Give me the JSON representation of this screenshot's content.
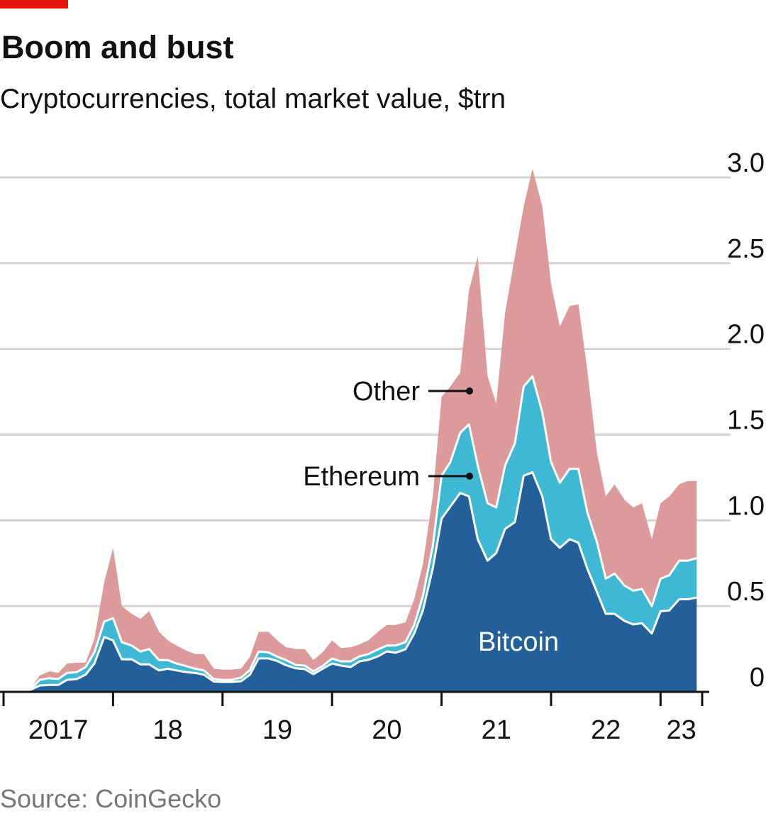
{
  "chart_data": {
    "type": "stacked_area",
    "title": "Boom and bust",
    "subtitle": "Cryptocurrencies, total market value, $trn",
    "source": "Source: CoinGecko",
    "x": [
      2017.0,
      2017.08,
      2017.17,
      2017.25,
      2017.33,
      2017.42,
      2017.5,
      2017.58,
      2017.67,
      2017.75,
      2017.83,
      2017.92,
      2018.0,
      2018.08,
      2018.17,
      2018.25,
      2018.33,
      2018.42,
      2018.5,
      2018.58,
      2018.67,
      2018.75,
      2018.83,
      2018.92,
      2019.0,
      2019.08,
      2019.17,
      2019.25,
      2019.33,
      2019.42,
      2019.5,
      2019.58,
      2019.67,
      2019.75,
      2019.83,
      2019.92,
      2020.0,
      2020.08,
      2020.17,
      2020.25,
      2020.33,
      2020.42,
      2020.5,
      2020.58,
      2020.67,
      2020.75,
      2020.83,
      2020.92,
      2021.0,
      2021.08,
      2021.17,
      2021.25,
      2021.33,
      2021.42,
      2021.5,
      2021.58,
      2021.67,
      2021.75,
      2021.83,
      2021.92,
      2022.0,
      2022.08,
      2022.17,
      2022.25,
      2022.33,
      2022.42,
      2022.5,
      2022.58,
      2022.67,
      2022.75,
      2022.83,
      2022.92,
      2023.0,
      2023.08,
      2023.17,
      2023.25,
      2023.33
    ],
    "series": [
      {
        "name": "Bitcoin",
        "color": "#23609a",
        "values": [
          0.01,
          0.01,
          0.012,
          0.013,
          0.037,
          0.04,
          0.04,
          0.07,
          0.075,
          0.1,
          0.165,
          0.32,
          0.3,
          0.19,
          0.19,
          0.16,
          0.16,
          0.125,
          0.135,
          0.125,
          0.115,
          0.11,
          0.1,
          0.06,
          0.058,
          0.058,
          0.062,
          0.1,
          0.195,
          0.195,
          0.18,
          0.155,
          0.137,
          0.133,
          0.103,
          0.137,
          0.165,
          0.153,
          0.145,
          0.178,
          0.186,
          0.207,
          0.236,
          0.228,
          0.248,
          0.34,
          0.475,
          0.72,
          1.01,
          1.08,
          1.16,
          1.14,
          0.89,
          0.765,
          0.81,
          0.95,
          0.99,
          1.26,
          1.28,
          1.14,
          0.89,
          0.84,
          0.89,
          0.87,
          0.72,
          0.58,
          0.455,
          0.455,
          0.414,
          0.393,
          0.4,
          0.34,
          0.47,
          0.475,
          0.54,
          0.54,
          0.55
        ]
      },
      {
        "name": "Ethereum",
        "color": "#3fb8d4",
        "values": [
          0.001,
          0.002,
          0.003,
          0.004,
          0.033,
          0.04,
          0.035,
          0.04,
          0.04,
          0.045,
          0.065,
          0.09,
          0.13,
          0.1,
          0.08,
          0.075,
          0.09,
          0.06,
          0.05,
          0.04,
          0.035,
          0.025,
          0.025,
          0.015,
          0.012,
          0.012,
          0.021,
          0.028,
          0.04,
          0.035,
          0.025,
          0.03,
          0.02,
          0.02,
          0.017,
          0.016,
          0.03,
          0.025,
          0.033,
          0.029,
          0.034,
          0.041,
          0.034,
          0.042,
          0.042,
          0.05,
          0.085,
          0.13,
          0.25,
          0.26,
          0.35,
          0.42,
          0.43,
          0.335,
          0.265,
          0.37,
          0.46,
          0.52,
          0.56,
          0.49,
          0.45,
          0.38,
          0.41,
          0.43,
          0.33,
          0.29,
          0.205,
          0.235,
          0.206,
          0.197,
          0.2,
          0.16,
          0.19,
          0.205,
          0.225,
          0.225,
          0.23
        ]
      },
      {
        "name": "Other",
        "color": "#dc9a9a",
        "values": [
          0.002,
          0.003,
          0.003,
          0.004,
          0.025,
          0.04,
          0.035,
          0.055,
          0.055,
          0.025,
          0.08,
          0.23,
          0.41,
          0.21,
          0.185,
          0.19,
          0.22,
          0.165,
          0.115,
          0.105,
          0.09,
          0.085,
          0.095,
          0.06,
          0.06,
          0.06,
          0.052,
          0.077,
          0.115,
          0.12,
          0.095,
          0.075,
          0.093,
          0.097,
          0.065,
          0.082,
          0.105,
          0.078,
          0.082,
          0.07,
          0.08,
          0.102,
          0.12,
          0.12,
          0.115,
          0.15,
          0.185,
          0.29,
          0.46,
          0.44,
          0.35,
          0.78,
          1.22,
          0.74,
          0.605,
          0.89,
          1.09,
          1.05,
          1.21,
          1.2,
          1.04,
          0.91,
          0.95,
          0.96,
          0.83,
          0.52,
          0.48,
          0.52,
          0.5,
          0.485,
          0.5,
          0.39,
          0.44,
          0.46,
          0.445,
          0.465,
          0.45
        ]
      }
    ],
    "xlim": [
      2017,
      2023.38
    ],
    "xticks": [
      {
        "value": 2017,
        "label": "2017"
      },
      {
        "value": 2018,
        "label": "18"
      },
      {
        "value": 2019,
        "label": "19"
      },
      {
        "value": 2020,
        "label": "20"
      },
      {
        "value": 2021,
        "label": "21"
      },
      {
        "value": 2022,
        "label": "22"
      },
      {
        "value": 2023,
        "label": "23"
      }
    ],
    "ylim": [
      0,
      3
    ],
    "yticks": [
      0,
      {
        "value": 0.5,
        "label": "0.5"
      },
      {
        "value": 1,
        "label": "1.0"
      },
      {
        "value": 1.5,
        "label": "1.5"
      },
      {
        "value": 2,
        "label": "2.0"
      },
      {
        "value": 2.5,
        "label": "2.5"
      },
      {
        "value": 3,
        "label": "3.0"
      }
    ],
    "grid": true
  }
}
